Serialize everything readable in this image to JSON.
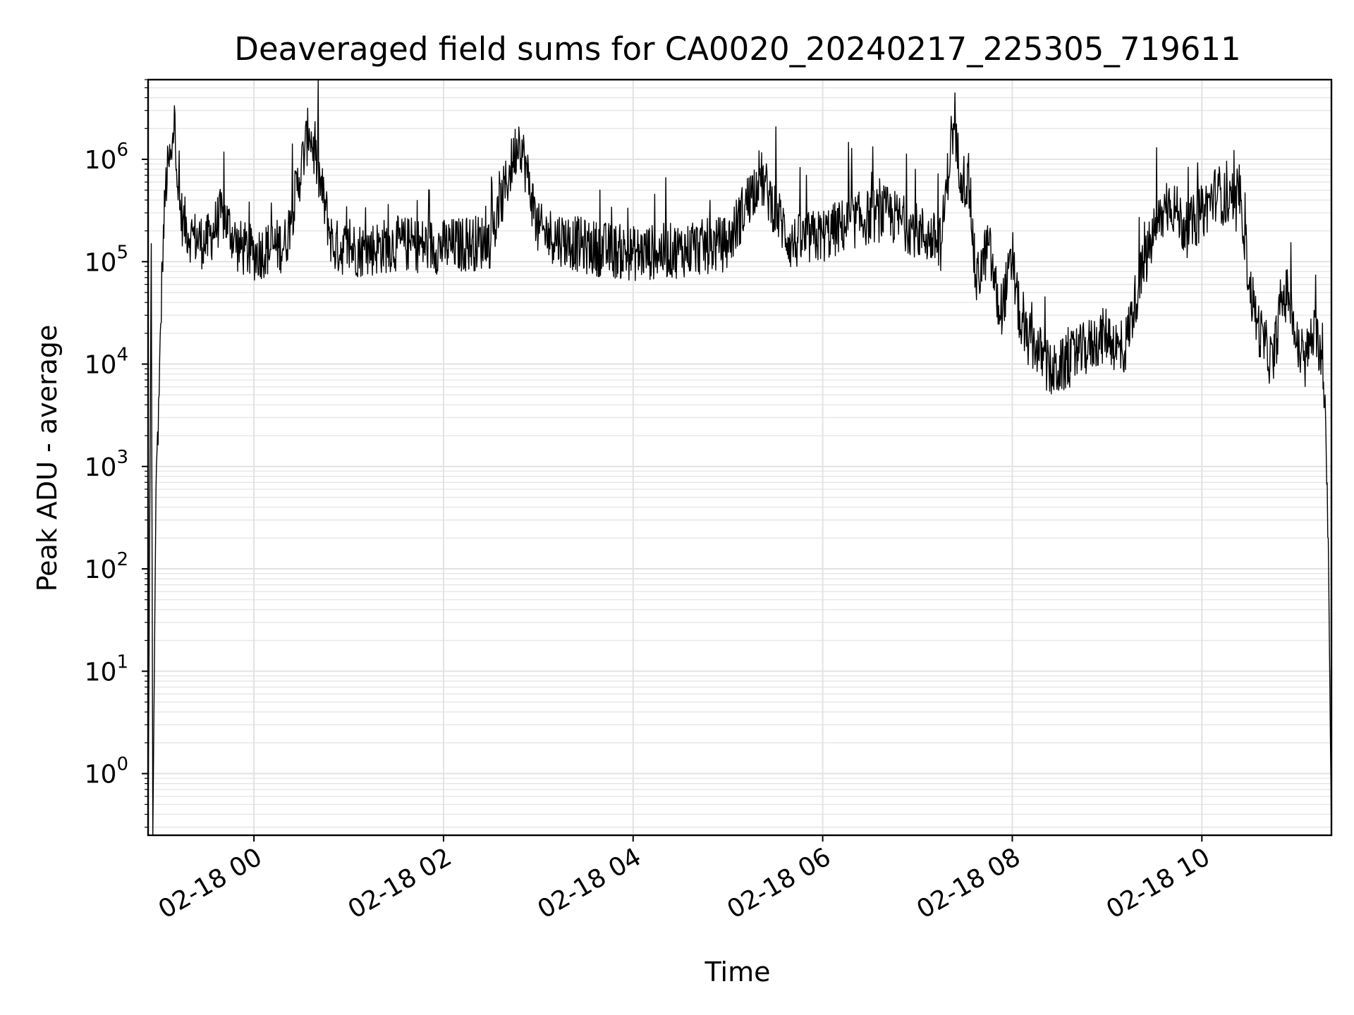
{
  "chart_data": {
    "type": "line",
    "title": "Deaveraged field sums for CA0020_20240217_225305_719611",
    "xlabel": "Time",
    "ylabel": "Peak ADU - average",
    "yscale": "log",
    "xlim": [
      "2024-02-17 22:53",
      "2024-02-18 11:22"
    ],
    "ylim": [
      0.25,
      6000000
    ],
    "grid": "major and minor, light gray",
    "line_color": "#000000",
    "x_ticks": [
      "02-18 00",
      "02-18 02",
      "02-18 04",
      "02-18 06",
      "02-18 08",
      "02-18 10"
    ],
    "y_ticks": [
      {
        "base": "10",
        "exp": "0"
      },
      {
        "base": "10",
        "exp": "1"
      },
      {
        "base": "10",
        "exp": "2"
      },
      {
        "base": "10",
        "exp": "3"
      },
      {
        "base": "10",
        "exp": "4"
      },
      {
        "base": "10",
        "exp": "5"
      },
      {
        "base": "10",
        "exp": "6"
      }
    ],
    "series_points": [
      [
        "2024-02-17 22:53",
        0.25
      ],
      [
        "2024-02-17 22:55",
        150000
      ],
      [
        "2024-02-17 22:56",
        0.25
      ],
      [
        "2024-02-17 22:58",
        600
      ],
      [
        "2024-02-17 23:00",
        5000
      ],
      [
        "2024-02-17 23:02",
        100000
      ],
      [
        "2024-02-17 23:04",
        500000
      ],
      [
        "2024-02-17 23:06",
        900000
      ],
      [
        "2024-02-17 23:08",
        1000000
      ],
      [
        "2024-02-17 23:10",
        2800000
      ],
      [
        "2024-02-17 23:12",
        400000
      ],
      [
        "2024-02-17 23:15",
        250000
      ],
      [
        "2024-02-17 23:20",
        180000
      ],
      [
        "2024-02-17 23:30",
        150000
      ],
      [
        "2024-02-17 23:40",
        300000
      ],
      [
        "2024-02-17 23:50",
        140000
      ],
      [
        "2024-02-18 00:00",
        120000
      ],
      [
        "2024-02-18 00:20",
        150000
      ],
      [
        "2024-02-18 00:35",
        2000000
      ],
      [
        "2024-02-18 00:50",
        140000
      ],
      [
        "2024-02-18 01:10",
        130000
      ],
      [
        "2024-02-18 01:30",
        150000
      ],
      [
        "2024-02-18 02:00",
        140000
      ],
      [
        "2024-02-18 02:30",
        160000
      ],
      [
        "2024-02-18 02:48",
        1700000
      ],
      [
        "2024-02-18 03:00",
        200000
      ],
      [
        "2024-02-18 03:30",
        140000
      ],
      [
        "2024-02-18 04:00",
        120000
      ],
      [
        "2024-02-18 04:30",
        130000
      ],
      [
        "2024-02-18 05:00",
        150000
      ],
      [
        "2024-02-18 05:20",
        700000
      ],
      [
        "2024-02-18 05:40",
        150000
      ],
      [
        "2024-02-18 06:00",
        180000
      ],
      [
        "2024-02-18 06:20",
        250000
      ],
      [
        "2024-02-18 06:40",
        300000
      ],
      [
        "2024-02-18 07:00",
        200000
      ],
      [
        "2024-02-18 07:15",
        150000
      ],
      [
        "2024-02-18 07:22",
        2000000
      ],
      [
        "2024-02-18 07:28",
        700000
      ],
      [
        "2024-02-18 07:33",
        500000
      ],
      [
        "2024-02-18 07:37",
        60000
      ],
      [
        "2024-02-18 07:45",
        150000
      ],
      [
        "2024-02-18 07:52",
        30000
      ],
      [
        "2024-02-18 08:00",
        100000
      ],
      [
        "2024-02-18 08:06",
        20000
      ],
      [
        "2024-02-18 08:15",
        15000
      ],
      [
        "2024-02-18 08:25",
        8000
      ],
      [
        "2024-02-18 08:40",
        12000
      ],
      [
        "2024-02-18 09:00",
        20000
      ],
      [
        "2024-02-18 09:10",
        12000
      ],
      [
        "2024-02-18 09:20",
        60000
      ],
      [
        "2024-02-18 09:30",
        200000
      ],
      [
        "2024-02-18 09:40",
        400000
      ],
      [
        "2024-02-18 09:50",
        200000
      ],
      [
        "2024-02-18 10:00",
        300000
      ],
      [
        "2024-02-18 10:10",
        500000
      ],
      [
        "2024-02-18 10:20",
        300000
      ],
      [
        "2024-02-18 10:25",
        400000
      ],
      [
        "2024-02-18 10:30",
        60000
      ],
      [
        "2024-02-18 10:35",
        25000
      ],
      [
        "2024-02-18 10:40",
        15000
      ],
      [
        "2024-02-18 10:45",
        10000
      ],
      [
        "2024-02-18 10:50",
        40000
      ],
      [
        "2024-02-18 10:55",
        50000
      ],
      [
        "2024-02-18 11:00",
        15000
      ],
      [
        "2024-02-18 11:05",
        10000
      ],
      [
        "2024-02-18 11:10",
        20000
      ],
      [
        "2024-02-18 11:15",
        15000
      ],
      [
        "2024-02-18 11:18",
        5000
      ],
      [
        "2024-02-18 11:20",
        200
      ],
      [
        "2024-02-18 11:22",
        0.25
      ]
    ]
  }
}
